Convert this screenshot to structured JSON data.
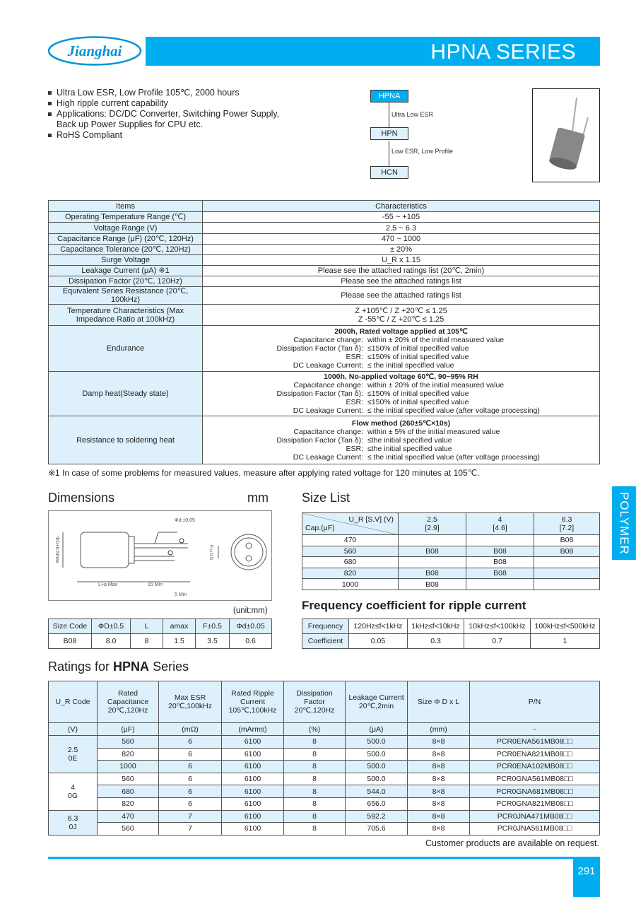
{
  "brand": {
    "logo_text": "Jianghai",
    "series_title": "HPNA SERIES",
    "side_tab": "POLYMER",
    "page_number": "291"
  },
  "features": [
    "Ultra Low ESR, Low Profile 105℃, 2000 hours",
    "High ripple current capability",
    "Applications: DC/DC Converter, Switching Power Supply,",
    "Back up Power Supplies for CPU etc.",
    "RoHS Compliant"
  ],
  "family": {
    "top": "HPNA",
    "mid": "HPN",
    "bottom": "HCN",
    "upper_arrow_label": "Ultra Low ESR",
    "lower_arrow_label": "Low ESR, Low Profile"
  },
  "spec": {
    "headers": [
      "Items",
      "Characteristics"
    ],
    "rows": [
      [
        "Operating Temperature Range (℃)",
        "-55 ~ +105"
      ],
      [
        "Voltage Range (V)",
        "2.5 ~ 6.3"
      ],
      [
        "Capacitance Range (μF) (20℃, 120Hz)",
        "470 ~ 1000"
      ],
      [
        "Capacitance Tolerance (20℃, 120Hz)",
        "± 20%"
      ],
      [
        "Surge Voltage",
        "U_R x 1.15"
      ],
      [
        "Leakage Current (μA) ※1",
        "Please see the attached ratings list (20℃, 2min)"
      ],
      [
        "Dissipation Factor (20℃, 120Hz)",
        "Please see the attached ratings list"
      ],
      [
        "Equivalent Series Resistance (20℃, 100kHz)",
        "Please see the attached ratings list"
      ]
    ],
    "temp_char": {
      "item": "Temperature Characteristics (Max Impedance Ratio at 100kHz)",
      "line1": "Z +105℃ / Z +20℃ ≤ 1.25",
      "line2": "Z -55℃ / Z +20℃ ≤ 1.25"
    },
    "blocks": [
      {
        "item": "Endurance",
        "title": "2000h, Rated voltage applied at 105℃",
        "lines": [
          [
            "Capacitance change:",
            "within ± 20% of the initial measured value"
          ],
          [
            "Dissipation Factor (Tan δ):",
            "≤150% of initial specified value"
          ],
          [
            "ESR:",
            "≤150% of initial specified value"
          ],
          [
            "DC Leakage Current:",
            "≤ the initial specified value"
          ]
        ]
      },
      {
        "item": "Damp heat(Steady state)",
        "title": "1000h, No-applied voltage 60℃, 90~95% RH",
        "lines": [
          [
            "Capacitance change:",
            "within ± 20% of the initial measured value"
          ],
          [
            "Dissipation Factor (Tan δ):",
            "≤150% of initial specified value"
          ],
          [
            "ESR:",
            "≤150% of initial specified value"
          ],
          [
            "DC Leakage Current:",
            "≤ the initial specified value (after voltage processing)"
          ]
        ]
      },
      {
        "item": "Resistance to soldering heat",
        "title": "Flow method (260±5℃×10s)",
        "lines": [
          [
            "Capacitance change:",
            "within ± 5% of the initial measured value"
          ],
          [
            "Dissipation Factor (Tan δ):",
            "≤the initial specified value"
          ],
          [
            "ESR:",
            "≤the initial specified value"
          ],
          [
            "DC Leakage Current:",
            "≤ the initial specified value (after voltage processing)"
          ]
        ]
      }
    ],
    "footnote": "※1 In case of some problems for measured values, measure after applying rated voltage for 120 minutes at 105℃."
  },
  "dimensions": {
    "title": "Dimensions",
    "unit": "mm",
    "unit_note": "(unit:mm)",
    "drawing_labels": {
      "lead_dia": "Φd ±0.05",
      "body_dia": "ΦD+0.5max",
      "length": "L+a Max",
      "lead_len": "15 Min",
      "lead_diff": "5 Min",
      "pitch": "F±0.5"
    },
    "headers": [
      "Size Code",
      "ΦD±0.5",
      "L",
      "amax",
      "F±0.5",
      "Φd±0.05"
    ],
    "rows": [
      [
        "B08",
        "8.0",
        "8",
        "1.5",
        "3.5",
        "0.6"
      ]
    ]
  },
  "size_list": {
    "title": "Size List",
    "corner_top": "U_R [S.V] (V)",
    "corner_bottom": "Cap.(μF)",
    "voltages": [
      [
        "2.5",
        "[2.9]"
      ],
      [
        "4",
        "[4.6]"
      ],
      [
        "6.3",
        "[7.2]"
      ]
    ],
    "rows": [
      [
        "470",
        "",
        "",
        "B08"
      ],
      [
        "560",
        "B08",
        "B08",
        "B08"
      ],
      [
        "680",
        "",
        "B08",
        ""
      ],
      [
        "820",
        "B08",
        "B08",
        ""
      ],
      [
        "1000",
        "B08",
        "",
        ""
      ]
    ]
  },
  "frequency": {
    "title": "Frequency coefficient for ripple current",
    "headers": [
      "Frequency",
      "120Hz≤f<1kHz",
      "1kHz≤f<10kHz",
      "10kHz≤f<100kHz",
      "100kHz≤f<500kHz"
    ],
    "row": [
      "Coefficient",
      "0.05",
      "0.3",
      "0.7",
      "1"
    ]
  },
  "ratings": {
    "title_prefix": "Ratings for ",
    "title_bold": "HPNA",
    "title_suffix": " Series",
    "headers": [
      "U_R Code",
      "Rated Capacitance 20℃,120Hz",
      "Max ESR 20℃,100kHz",
      "Rated Ripple Current 105℃,100kHz",
      "Dissipation Factor 20℃,120Hz",
      "Leakage Current 20℃,2min",
      "Size Φ D x L",
      "P/N"
    ],
    "units": [
      "(V)",
      "(μF)",
      "(mΩ)",
      "(mArms)",
      "(%)",
      "(μA)",
      "(mm)",
      "-"
    ],
    "groups": [
      {
        "voltage": "2.5",
        "code": "0E",
        "rows": [
          [
            "560",
            "6",
            "6100",
            "8",
            "500.0",
            "8×8",
            "PCR0ENA561MB08□□"
          ],
          [
            "820",
            "6",
            "6100",
            "8",
            "500.0",
            "8×8",
            "PCR0ENA821MB08□□"
          ],
          [
            "1000",
            "6",
            "6100",
            "8",
            "500.0",
            "8×8",
            "PCR0ENA102MB08□□"
          ]
        ]
      },
      {
        "voltage": "4",
        "code": "0G",
        "rows": [
          [
            "560",
            "6",
            "6100",
            "8",
            "500.0",
            "8×8",
            "PCR0GNA561MB08□□"
          ],
          [
            "680",
            "6",
            "6100",
            "8",
            "544.0",
            "8×8",
            "PCR0GNA681MB08□□"
          ],
          [
            "820",
            "6",
            "6100",
            "8",
            "656.0",
            "8×8",
            "PCR0GNA821MB08□□"
          ]
        ]
      },
      {
        "voltage": "6.3",
        "code": "0J",
        "rows": [
          [
            "470",
            "7",
            "6100",
            "8",
            "592.2",
            "8×8",
            "PCR0JNA471MB08□□"
          ],
          [
            "560",
            "7",
            "6100",
            "8",
            "705.6",
            "8×8",
            "PCR0JNA561MB08□□"
          ]
        ]
      }
    ],
    "note": "Customer products are available on request."
  },
  "colors": {
    "brand_blue": "#00AEEF",
    "light_blue": "#DDF0FB"
  }
}
